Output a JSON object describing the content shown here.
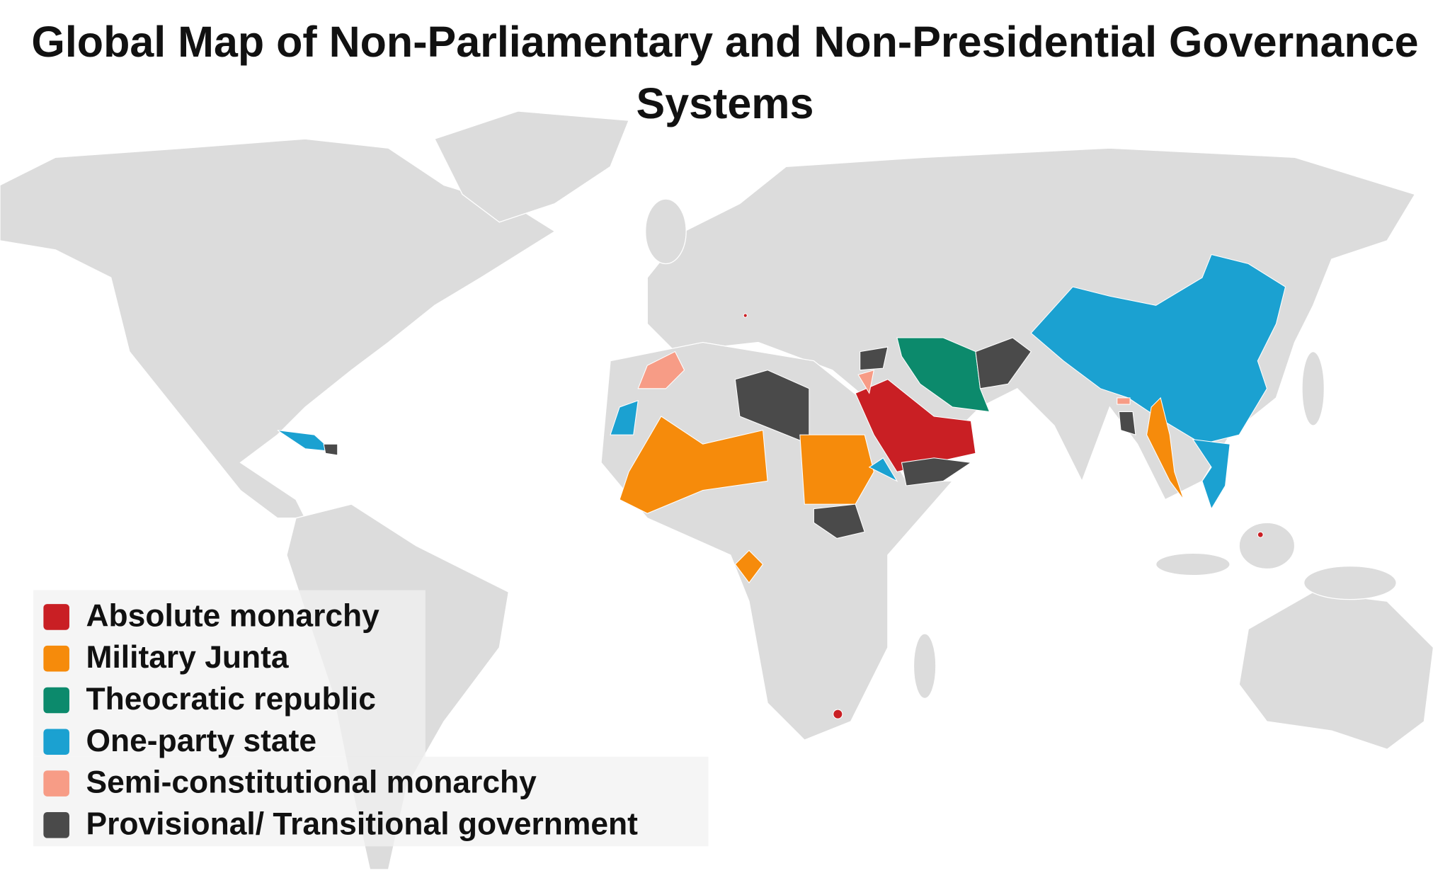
{
  "title": "Global Map of Non-Parliamentary and Non-Presidential Governance Systems",
  "legend": [
    {
      "label": "Absolute monarchy",
      "color": "#c91f24"
    },
    {
      "label": "Military Junta",
      "color": "#f68b0b"
    },
    {
      "label": "Theocratic republic",
      "color": "#0c8a6c"
    },
    {
      "label": "One-party state",
      "color": "#1ba1d1"
    },
    {
      "label": "Semi-constitutional monarchy",
      "color": "#f79c86"
    },
    {
      "label": "Provisional/ Transitional government",
      "color": "#4a4a4a"
    }
  ]
}
